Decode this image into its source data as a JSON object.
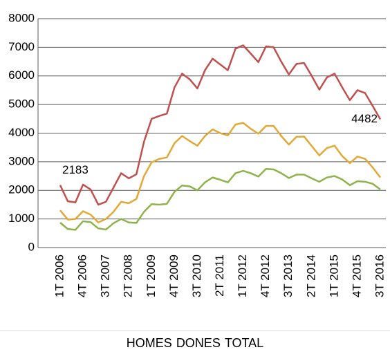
{
  "chart_data": {
    "type": "line",
    "categories": [
      "1T 2006",
      null,
      null,
      "4T 2006",
      null,
      null,
      "3T 2007",
      null,
      null,
      "2T 2008",
      null,
      null,
      "1T 2009",
      null,
      null,
      "4T 2009",
      null,
      null,
      "3T 2010",
      null,
      null,
      "2T 2011",
      null,
      null,
      "1T 2012",
      null,
      null,
      "4T 2012",
      null,
      null,
      "3T 2013",
      null,
      null,
      "2T 2014",
      null,
      null,
      "1T 2015",
      null,
      null,
      "4T 2015",
      null,
      null,
      "3T 2016"
    ],
    "series": [
      {
        "name": "HOMES",
        "color": "#e3a833",
        "legend_color": "#e3a833",
        "values": [
          1300,
          980,
          1000,
          1270,
          1150,
          880,
          1000,
          1250,
          1600,
          1550,
          1700,
          2500,
          2980,
          3100,
          3150,
          3650,
          3900,
          3720,
          3560,
          3900,
          4130,
          4000,
          3920,
          4300,
          4360,
          4150,
          3980,
          4250,
          4250,
          3900,
          3600,
          3870,
          3880,
          3550,
          3220,
          3480,
          3560,
          3200,
          2950,
          3180,
          3100,
          2800,
          2450
        ]
      },
      {
        "name": "DONES",
        "color": "#8db34a",
        "legend_color": "#31869b",
        "values": [
          870,
          650,
          620,
          920,
          890,
          670,
          630,
          850,
          1000,
          880,
          860,
          1250,
          1520,
          1500,
          1530,
          1950,
          2170,
          2140,
          2000,
          2280,
          2450,
          2370,
          2280,
          2600,
          2680,
          2600,
          2480,
          2750,
          2730,
          2600,
          2430,
          2550,
          2550,
          2420,
          2300,
          2450,
          2500,
          2380,
          2180,
          2320,
          2300,
          2230,
          2030
        ]
      },
      {
        "name": "TOTAL",
        "color": "#c0504d",
        "legend_color": "#c0504d",
        "values": [
          2183,
          1620,
          1580,
          2200,
          2030,
          1500,
          1600,
          2100,
          2600,
          2420,
          2560,
          3700,
          4500,
          4600,
          4680,
          5600,
          6080,
          5880,
          5560,
          6200,
          6600,
          6400,
          6200,
          6950,
          7070,
          6780,
          6480,
          7030,
          7000,
          6500,
          6050,
          6420,
          6450,
          6000,
          5520,
          5950,
          6080,
          5600,
          5150,
          5500,
          5400,
          4950,
          4482
        ]
      }
    ],
    "ylim": [
      0,
      8000
    ],
    "yticks": [
      0,
      1000,
      2000,
      3000,
      4000,
      5000,
      6000,
      7000,
      8000
    ],
    "grid": true,
    "legend": "bottom"
  }
}
